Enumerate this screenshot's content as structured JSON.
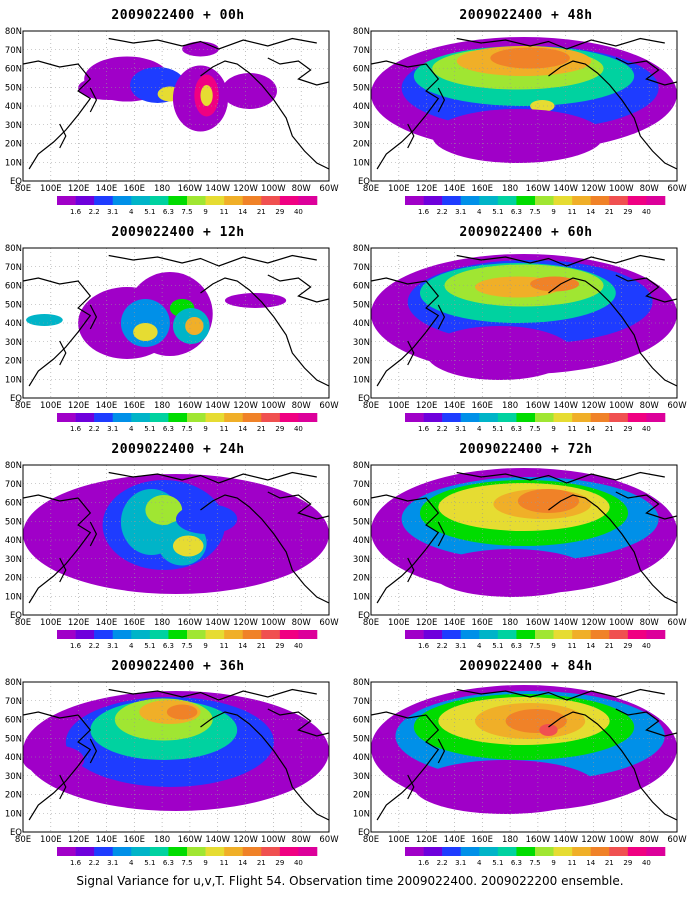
{
  "caption": "Signal Variance for u,v,T. Flight 54. Observation time 2009022400. 2009022200 ensemble.",
  "panels": [
    {
      "title": "2009022400 + 00h"
    },
    {
      "title": "2009022400 + 48h"
    },
    {
      "title": "2009022400 + 12h"
    },
    {
      "title": "2009022400 + 60h"
    },
    {
      "title": "2009022400 + 24h"
    },
    {
      "title": "2009022400 + 72h"
    },
    {
      "title": "2009022400 + 36h"
    },
    {
      "title": "2009022400 + 84h"
    }
  ],
  "axes": {
    "x_ticks": [
      "80E",
      "100E",
      "120E",
      "140E",
      "160E",
      "180",
      "160W",
      "140W",
      "120W",
      "100W",
      "80W",
      "60W"
    ],
    "y_ticks": [
      "EQ",
      "10N",
      "20N",
      "30N",
      "40N",
      "50N",
      "60N",
      "70N",
      "80N"
    ]
  },
  "colorbar": {
    "levels": [
      "1.6",
      "2.2",
      "3.1",
      "4",
      "5.1",
      "6.3",
      "7.5",
      "9",
      "11",
      "14",
      "21",
      "29",
      "40"
    ],
    "colors": [
      "#a000c8",
      "#6e00dc",
      "#1e3cff",
      "#0090e8",
      "#00b4c8",
      "#00d2a0",
      "#00dc00",
      "#a0e632",
      "#e6dc32",
      "#f0af28",
      "#f08228",
      "#f05050",
      "#f00082",
      "#dc009a"
    ]
  }
}
